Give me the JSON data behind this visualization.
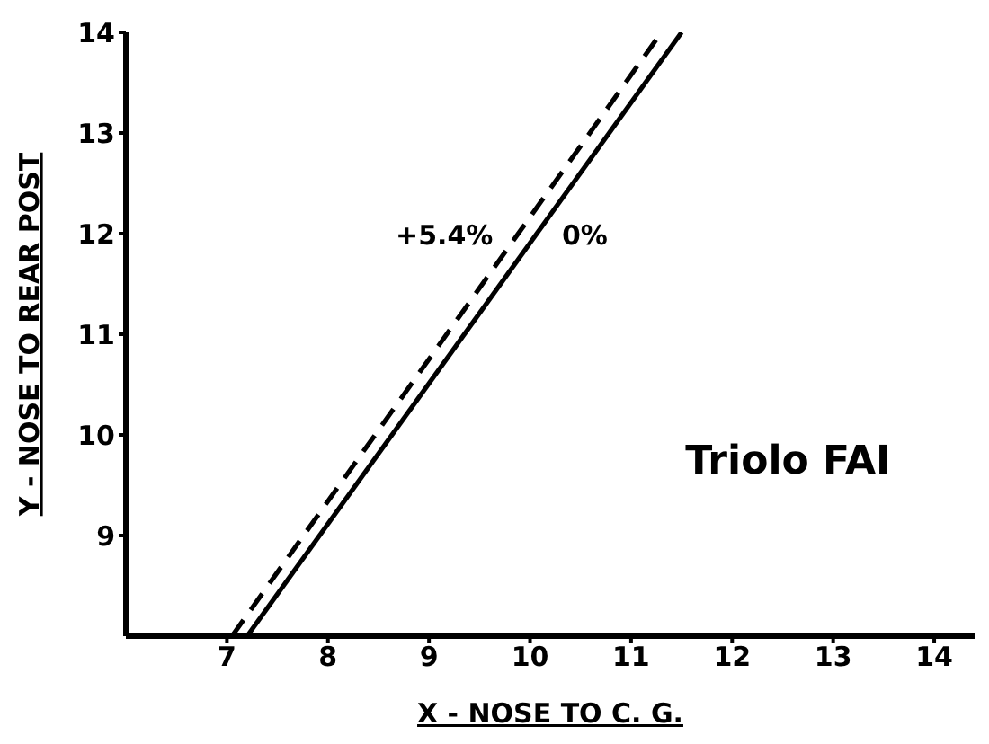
{
  "chart_data": {
    "type": "line",
    "xlabel": "X - NOSE  TO C. G.",
    "ylabel": "Y - NOSE TO REAR  POST",
    "annotations": [
      "Triolo FAI"
    ],
    "xlim": [
      6,
      14.4
    ],
    "ylim": [
      8,
      14
    ],
    "xticks": [
      7,
      8,
      9,
      10,
      11,
      12,
      13,
      14
    ],
    "yticks": [
      9,
      10,
      11,
      12,
      13,
      14
    ],
    "grid": false,
    "marker": "none",
    "series": [
      {
        "name": "+5.4%",
        "color": "#000000",
        "line_style": "dashed",
        "x": [
          7.05,
          11.3
        ],
        "values": [
          8,
          14
        ]
      },
      {
        "name": "0%",
        "color": "#000000",
        "line_style": "solid",
        "x": [
          7.2,
          11.5
        ],
        "values": [
          8,
          14
        ]
      }
    ]
  }
}
